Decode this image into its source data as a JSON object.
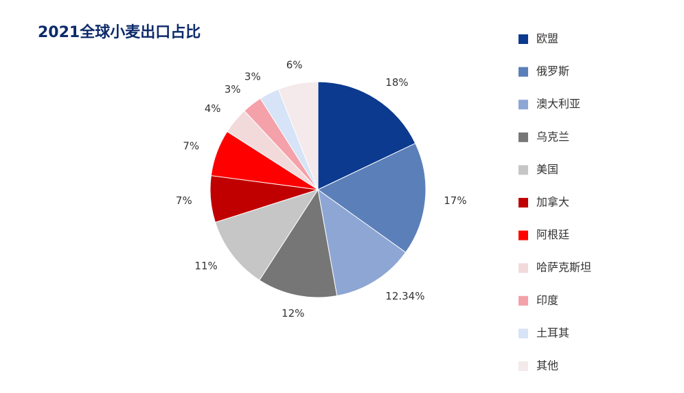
{
  "chart_data": {
    "type": "pie",
    "title": "2021全球小麦出口占比",
    "categories": [
      "欧盟",
      "俄罗斯",
      "澳大利亚",
      "乌克兰",
      "美国",
      "加拿大",
      "阿根廷",
      "哈萨克斯坦",
      "印度",
      "土耳其",
      "其他"
    ],
    "values": [
      18,
      17,
      12.34,
      12,
      11,
      7,
      7,
      4,
      3,
      3,
      6
    ],
    "value_labels": [
      "18%",
      "17%",
      "12.34%",
      "12%",
      "11%",
      "7%",
      "7%",
      "4%",
      "3%",
      "3%",
      "6%"
    ],
    "colors": [
      "#0b3a8e",
      "#5b7fb9",
      "#8da6d4",
      "#767676",
      "#c6c6c6",
      "#c00000",
      "#ff0000",
      "#f3dada",
      "#f4a1aa",
      "#d7e3f6",
      "#f4e9eb"
    ],
    "legend": "right"
  }
}
